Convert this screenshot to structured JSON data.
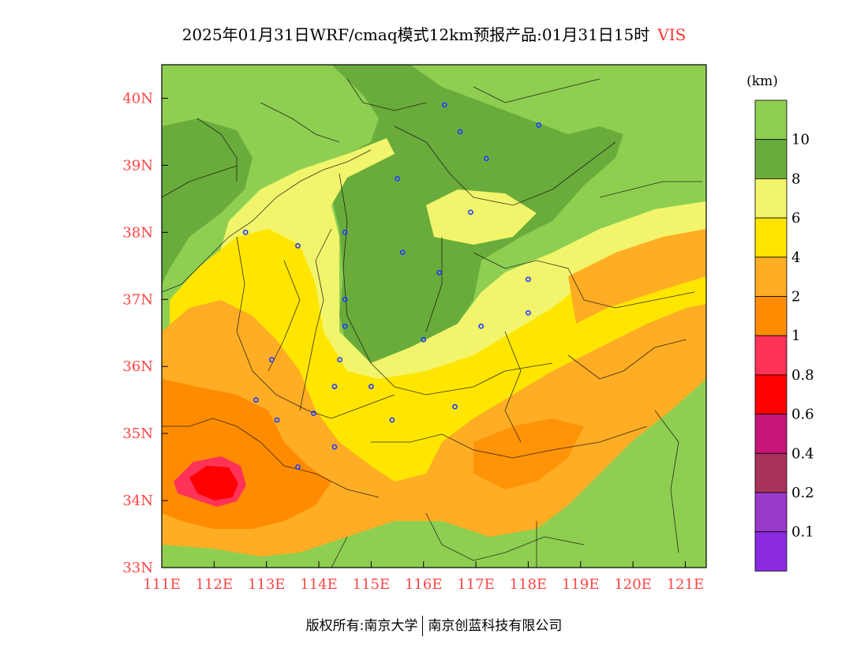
{
  "title": {
    "main": "2025年01月31日WRF/cmaq模式12km预报产品:01月31日15时",
    "variable": "VIS"
  },
  "map": {
    "lon_ticks": [
      "111E",
      "112E",
      "113E",
      "114E",
      "115E",
      "116E",
      "117E",
      "118E",
      "119E",
      "120E",
      "121E"
    ],
    "lat_ticks": [
      "33N",
      "34N",
      "35N",
      "36N",
      "37N",
      "38N",
      "39N",
      "40N"
    ],
    "tick_color": "#ff4444",
    "lon_range": [
      111,
      121.4
    ],
    "lat_range": [
      33,
      40.5
    ],
    "cities": [
      [
        116.4,
        39.9
      ],
      [
        116.7,
        39.5
      ],
      [
        117.2,
        39.1
      ],
      [
        118.2,
        39.6
      ],
      [
        115.5,
        38.8
      ],
      [
        116.9,
        38.3
      ],
      [
        114.5,
        38.0
      ],
      [
        112.6,
        38.0
      ],
      [
        113.6,
        37.8
      ],
      [
        115.6,
        37.7
      ],
      [
        116.3,
        37.4
      ],
      [
        118.0,
        37.3
      ],
      [
        114.5,
        37.0
      ],
      [
        114.5,
        36.6
      ],
      [
        117.1,
        36.6
      ],
      [
        118.0,
        36.8
      ],
      [
        116.0,
        36.4
      ],
      [
        113.1,
        36.1
      ],
      [
        114.4,
        36.1
      ],
      [
        114.3,
        35.7
      ],
      [
        115.0,
        35.7
      ],
      [
        112.8,
        35.5
      ],
      [
        113.2,
        35.2
      ],
      [
        113.9,
        35.3
      ],
      [
        115.4,
        35.2
      ],
      [
        116.6,
        35.4
      ],
      [
        114.3,
        34.8
      ],
      [
        113.6,
        34.5
      ]
    ]
  },
  "colorbar": {
    "unit": "(km)",
    "levels": [
      "10",
      "8",
      "6",
      "4",
      "2",
      "1",
      "0.8",
      "0.6",
      "0.4",
      "0.2",
      "0.1"
    ],
    "colors": [
      "#8ecf52",
      "#6aac3c",
      "#f2f56b",
      "#ffe600",
      "#ffad24",
      "#ff8c00",
      "#ff3358",
      "#ff0000",
      "#c8157a",
      "#a8325a",
      "#9a3acc",
      "#8a2be2"
    ]
  },
  "footer": {
    "left": "版权所有:南京大学",
    "right": "南京创蓝科技有限公司"
  }
}
